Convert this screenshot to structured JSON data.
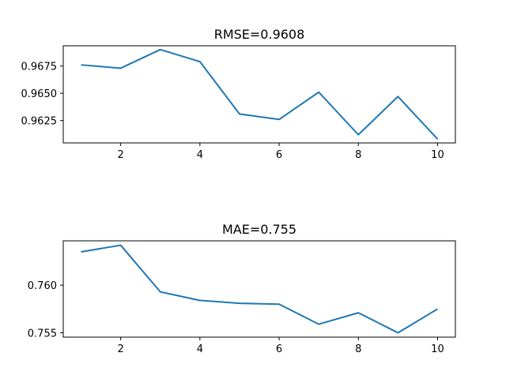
{
  "chart_data": [
    {
      "type": "line",
      "title": "RMSE=0.9608",
      "xlabel": "",
      "ylabel": "",
      "x": [
        1,
        2,
        3,
        4,
        5,
        6,
        7,
        8,
        9,
        10
      ],
      "series": [
        {
          "name": "RMSE",
          "color": "#1f77b4",
          "values": [
            0.9676,
            0.9673,
            0.969,
            0.9679,
            0.9631,
            0.9626,
            0.9651,
            0.9612,
            0.9647,
            0.9608
          ]
        }
      ],
      "xlim": [
        0.55,
        10.45
      ],
      "ylim": [
        0.96045,
        0.96935
      ],
      "xticks": [
        2,
        4,
        6,
        8,
        10
      ],
      "xtick_labels": [
        "2",
        "4",
        "6",
        "8",
        "10"
      ],
      "yticks": [
        0.9625,
        0.965,
        0.9675
      ],
      "ytick_labels": [
        "0.9625",
        "0.9650",
        "0.9675"
      ],
      "grid": false
    },
    {
      "type": "line",
      "title": "MAE=0.755",
      "xlabel": "",
      "ylabel": "",
      "x": [
        1,
        2,
        3,
        4,
        5,
        6,
        7,
        8,
        9,
        10
      ],
      "series": [
        {
          "name": "MAE",
          "color": "#1f77b4",
          "values": [
            0.7635,
            0.7642,
            0.7593,
            0.7584,
            0.7581,
            0.758,
            0.7559,
            0.7571,
            0.755,
            0.7575
          ]
        }
      ],
      "xlim": [
        0.55,
        10.45
      ],
      "ylim": [
        0.75454,
        0.76466
      ],
      "xticks": [
        2,
        4,
        6,
        8,
        10
      ],
      "xtick_labels": [
        "2",
        "4",
        "6",
        "8",
        "10"
      ],
      "yticks": [
        0.755,
        0.76
      ],
      "ytick_labels": [
        "0.755",
        "0.760"
      ],
      "grid": false
    }
  ]
}
